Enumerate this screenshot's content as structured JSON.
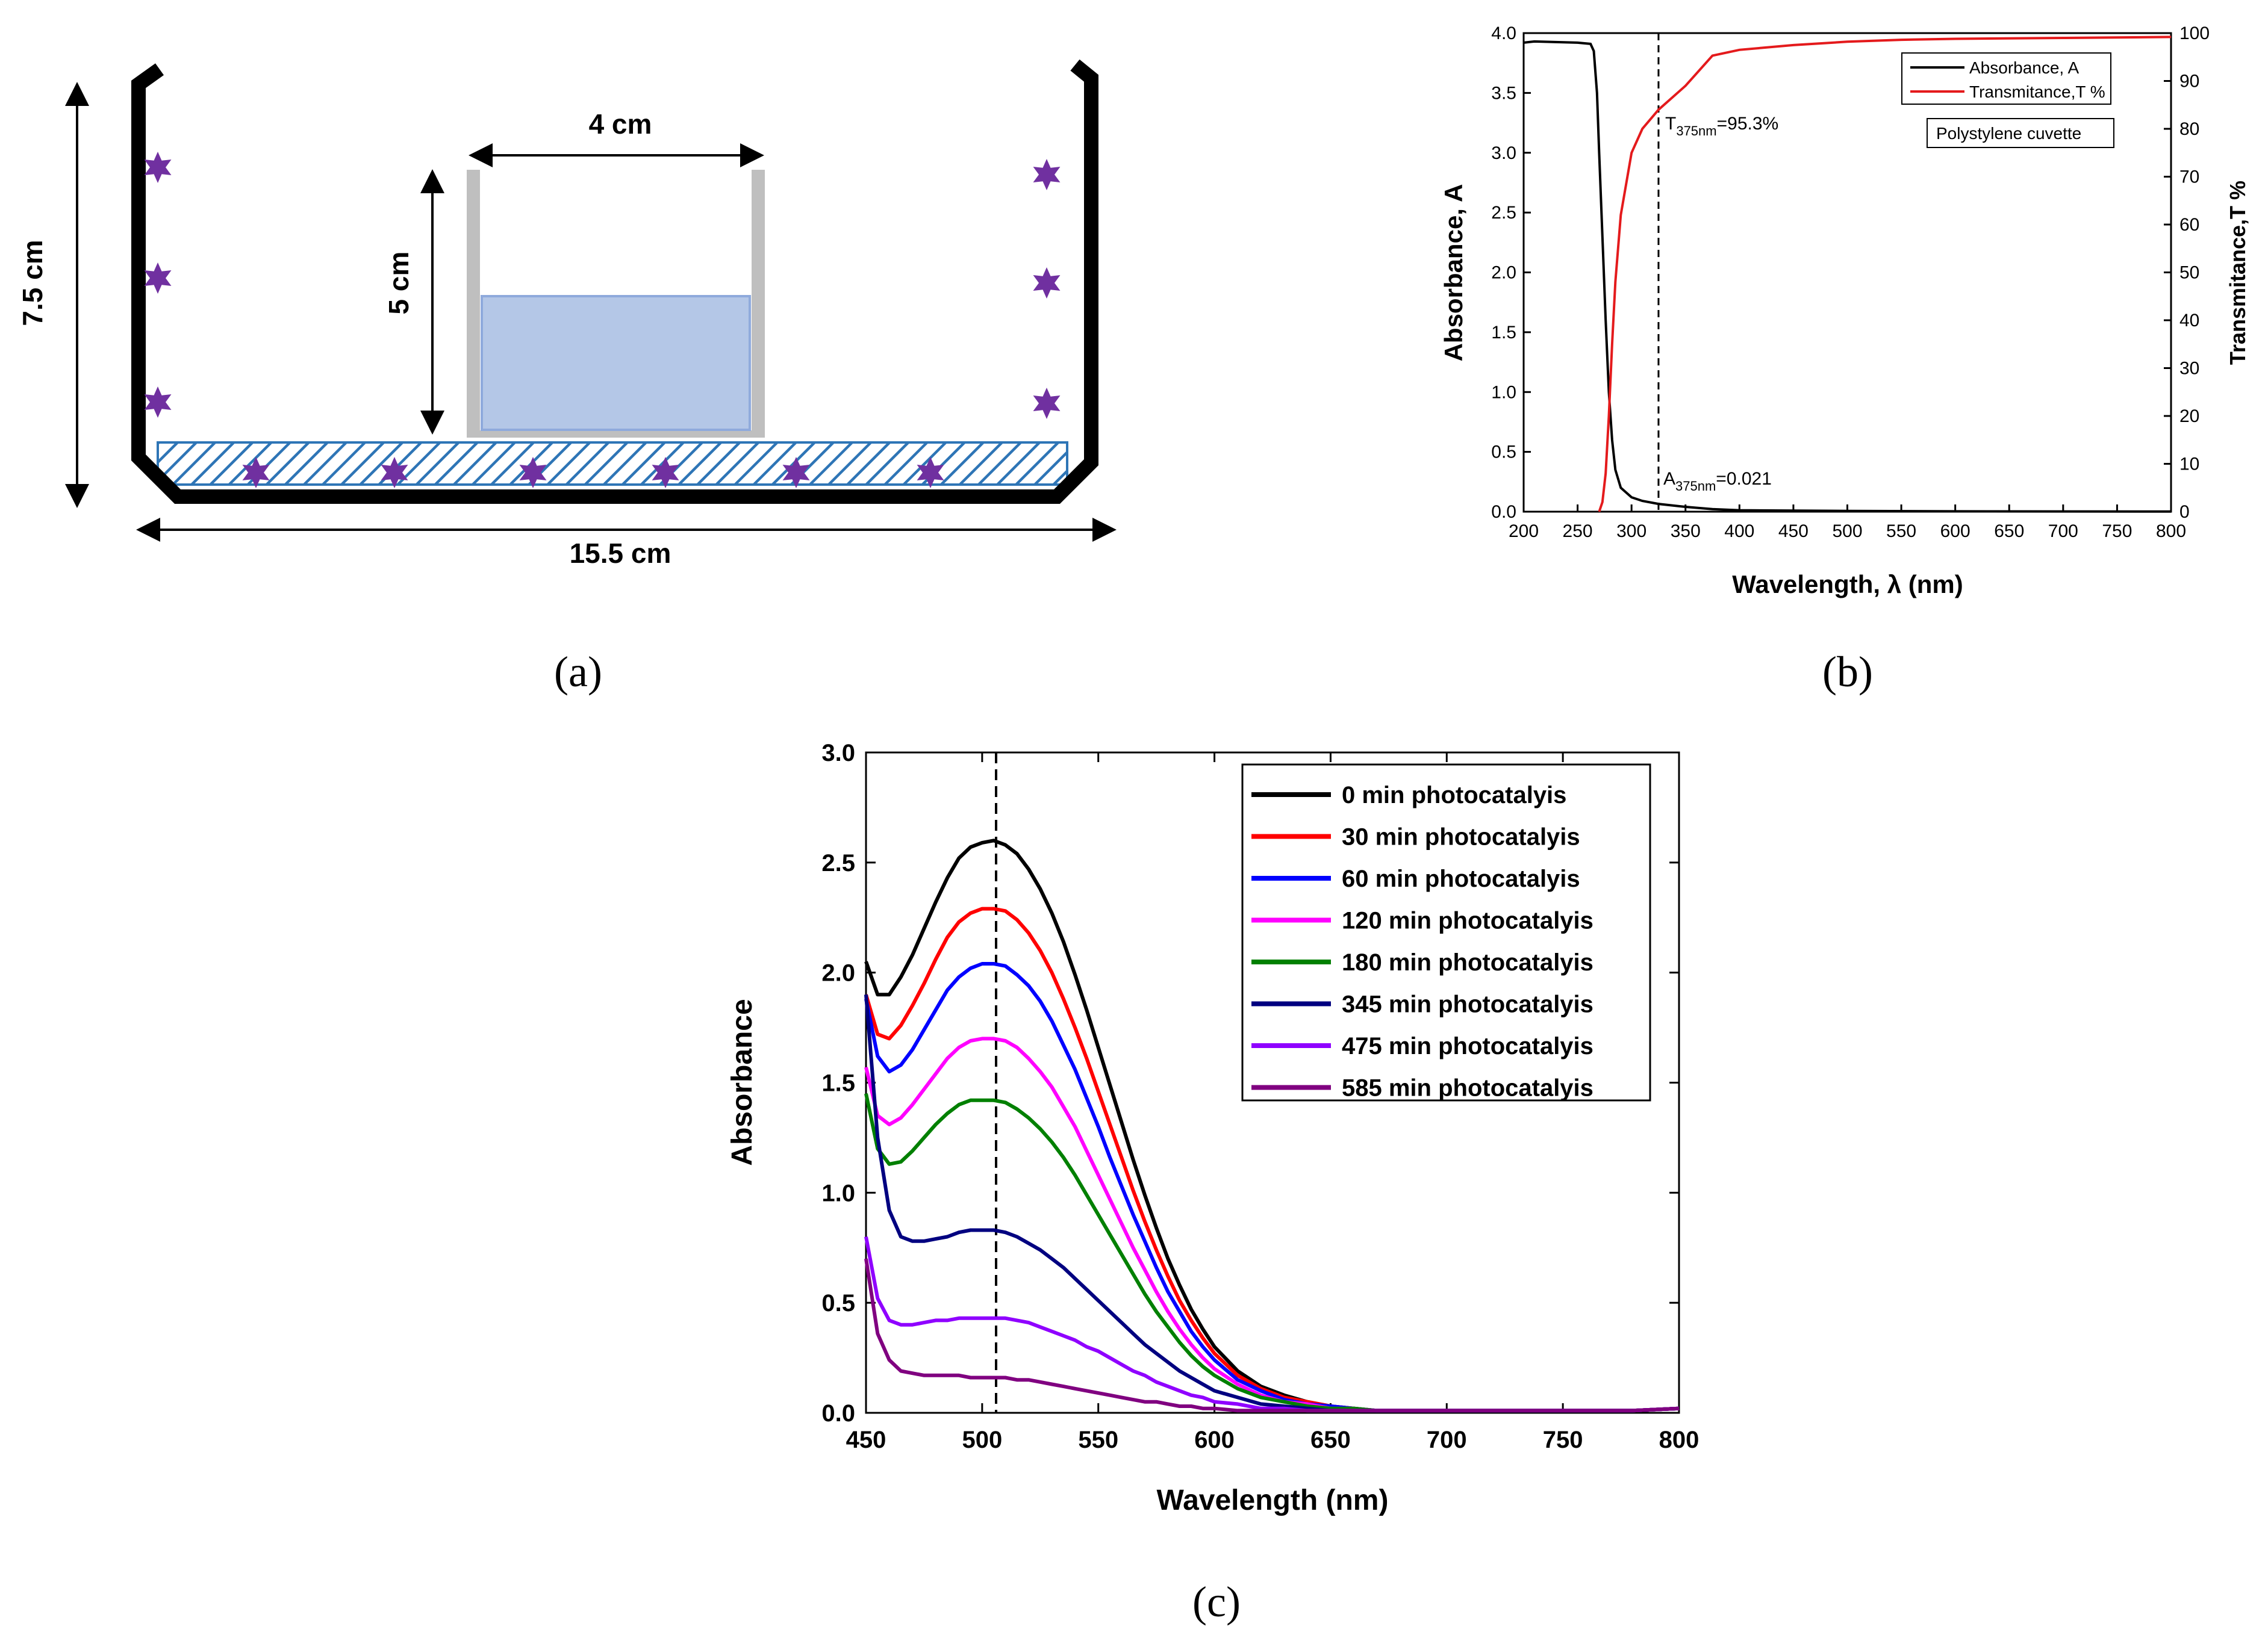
{
  "panel_a": {
    "caption": "(a)",
    "height_label": "7.5 cm",
    "width_label": "15.5 cm",
    "beaker_width_label": "4 cm",
    "beaker_height_label": "5 cm",
    "colors": {
      "wall": "#000000",
      "star": "#7030a0",
      "hatch": "#2e75b6",
      "water": "#b4c7e7",
      "beaker": "#bfbfbf"
    }
  },
  "chart_data": [
    {
      "type": "line",
      "panel_label": "(b)",
      "title": "",
      "xlabel": "Wavelength, λ (nm)",
      "ylabel": "Absorbance, A",
      "y2label": "Transmitance,T %",
      "xlim": [
        200,
        800
      ],
      "ylim": [
        0,
        4.0
      ],
      "y2lim": [
        0,
        100
      ],
      "x_ticks": [
        200,
        250,
        300,
        350,
        400,
        450,
        500,
        550,
        600,
        650,
        700,
        750,
        800
      ],
      "y_ticks": [
        "0.0",
        "0.5",
        "1.0",
        "1.5",
        "2.0",
        "2.5",
        "3.0",
        "3.5",
        "4.0"
      ],
      "y2_ticks": [
        0,
        10,
        20,
        30,
        40,
        50,
        60,
        70,
        80,
        90,
        100
      ],
      "grid": false,
      "legend_position": "top-right",
      "series": [
        {
          "name": "Absorbance, A",
          "axis": "left",
          "color": "#000000",
          "x": [
            200,
            210,
            250,
            262,
            265,
            268,
            270,
            273,
            276,
            279,
            282,
            285,
            290,
            300,
            310,
            325,
            350,
            375,
            400,
            500,
            600,
            700,
            800
          ],
          "y": [
            3.92,
            3.93,
            3.92,
            3.91,
            3.85,
            3.5,
            3.0,
            2.3,
            1.6,
            1.0,
            0.6,
            0.35,
            0.2,
            0.12,
            0.09,
            0.065,
            0.04,
            0.021,
            0.012,
            0.006,
            0.003,
            0.002,
            0.001
          ]
        },
        {
          "name": "Transmitance,T %",
          "axis": "right",
          "color": "#e41a1c",
          "x": [
            270,
            273,
            276,
            279,
            282,
            285,
            290,
            300,
            310,
            325,
            350,
            375,
            400,
            450,
            500,
            550,
            600,
            700,
            800
          ],
          "y": [
            0,
            2,
            8,
            20,
            35,
            48,
            62,
            75,
            80,
            84,
            89,
            95.3,
            96.5,
            97.5,
            98.2,
            98.6,
            98.8,
            99.0,
            99.2
          ]
        }
      ],
      "annotations": {
        "vline_x": 325,
        "t_prefix": "T",
        "t_sub": "375nm",
        "t_value": "=95.3%",
        "a_prefix": "A",
        "a_sub": "375nm",
        "a_value": "=0.021",
        "box_label": "Polystylene cuvette"
      }
    },
    {
      "type": "line",
      "panel_label": "(c)",
      "title": "",
      "xlabel": "Wavelength (nm)",
      "ylabel": "Absorbance",
      "xlim": [
        450,
        800
      ],
      "ylim": [
        0,
        3.0
      ],
      "x_ticks": [
        450,
        500,
        550,
        600,
        650,
        700,
        750,
        800
      ],
      "y_ticks": [
        "0.0",
        "0.5",
        "1.0",
        "1.5",
        "2.0",
        "2.5",
        "3.0"
      ],
      "grid": false,
      "legend_position": "top-right",
      "vline_x": 506,
      "x": [
        450,
        455,
        460,
        465,
        470,
        475,
        480,
        485,
        490,
        495,
        500,
        505,
        510,
        515,
        520,
        525,
        530,
        535,
        540,
        545,
        550,
        555,
        560,
        565,
        570,
        575,
        580,
        585,
        590,
        595,
        600,
        610,
        620,
        630,
        640,
        650,
        660,
        670,
        680,
        690,
        700,
        720,
        740,
        760,
        780,
        800
      ],
      "series": [
        {
          "name": "0 min photocatalyis",
          "color": "#000000",
          "y": [
            2.05,
            1.9,
            1.9,
            1.98,
            2.08,
            2.2,
            2.32,
            2.43,
            2.52,
            2.57,
            2.59,
            2.6,
            2.58,
            2.54,
            2.47,
            2.38,
            2.27,
            2.14,
            1.99,
            1.83,
            1.66,
            1.49,
            1.32,
            1.15,
            0.99,
            0.84,
            0.7,
            0.58,
            0.47,
            0.38,
            0.3,
            0.19,
            0.12,
            0.08,
            0.05,
            0.03,
            0.02,
            0.01,
            0.01,
            0.01,
            0.01,
            0.01,
            0.01,
            0.01,
            0.01,
            0.02
          ]
        },
        {
          "name": "30 min photocatalyis",
          "color": "#ff0000",
          "y": [
            1.9,
            1.72,
            1.7,
            1.76,
            1.85,
            1.95,
            2.06,
            2.16,
            2.23,
            2.27,
            2.29,
            2.29,
            2.28,
            2.24,
            2.18,
            2.1,
            2.0,
            1.88,
            1.75,
            1.61,
            1.46,
            1.31,
            1.16,
            1.01,
            0.87,
            0.74,
            0.62,
            0.51,
            0.42,
            0.34,
            0.27,
            0.17,
            0.11,
            0.07,
            0.05,
            0.03,
            0.02,
            0.01,
            0.01,
            0.01,
            0.01,
            0.01,
            0.01,
            0.01,
            0.01,
            0.02
          ]
        },
        {
          "name": "60 min photocatalyis",
          "color": "#0000ff",
          "y": [
            1.88,
            1.62,
            1.55,
            1.58,
            1.65,
            1.74,
            1.83,
            1.92,
            1.98,
            2.02,
            2.04,
            2.04,
            2.03,
            1.99,
            1.94,
            1.87,
            1.78,
            1.67,
            1.56,
            1.43,
            1.3,
            1.16,
            1.03,
            0.9,
            0.78,
            0.66,
            0.55,
            0.46,
            0.37,
            0.3,
            0.24,
            0.15,
            0.1,
            0.06,
            0.04,
            0.03,
            0.02,
            0.01,
            0.01,
            0.01,
            0.01,
            0.01,
            0.01,
            0.01,
            0.01,
            0.02
          ]
        },
        {
          "name": "120 min  photocatalyis",
          "color": "#ff00ff",
          "y": [
            1.57,
            1.35,
            1.31,
            1.34,
            1.4,
            1.47,
            1.54,
            1.61,
            1.66,
            1.69,
            1.7,
            1.7,
            1.69,
            1.66,
            1.61,
            1.55,
            1.48,
            1.39,
            1.3,
            1.19,
            1.08,
            0.97,
            0.86,
            0.75,
            0.65,
            0.55,
            0.46,
            0.38,
            0.31,
            0.25,
            0.2,
            0.13,
            0.08,
            0.05,
            0.04,
            0.02,
            0.02,
            0.01,
            0.01,
            0.01,
            0.01,
            0.01,
            0.01,
            0.01,
            0.01,
            0.02
          ]
        },
        {
          "name": "180 min  photocatalyis",
          "color": "#008000",
          "y": [
            1.45,
            1.2,
            1.13,
            1.14,
            1.19,
            1.25,
            1.31,
            1.36,
            1.4,
            1.42,
            1.42,
            1.42,
            1.41,
            1.38,
            1.34,
            1.29,
            1.23,
            1.16,
            1.08,
            0.99,
            0.9,
            0.81,
            0.72,
            0.63,
            0.54,
            0.46,
            0.39,
            0.32,
            0.26,
            0.21,
            0.17,
            0.11,
            0.07,
            0.05,
            0.03,
            0.02,
            0.02,
            0.01,
            0.01,
            0.01,
            0.01,
            0.01,
            0.01,
            0.01,
            0.01,
            0.02
          ]
        },
        {
          "name": "345 min  photocatalyis",
          "color": "#000080",
          "y": [
            1.9,
            1.25,
            0.92,
            0.8,
            0.78,
            0.78,
            0.79,
            0.8,
            0.82,
            0.83,
            0.83,
            0.83,
            0.82,
            0.8,
            0.77,
            0.74,
            0.7,
            0.66,
            0.61,
            0.56,
            0.51,
            0.46,
            0.41,
            0.36,
            0.31,
            0.27,
            0.23,
            0.19,
            0.16,
            0.13,
            0.1,
            0.07,
            0.04,
            0.03,
            0.02,
            0.01,
            0.01,
            0.01,
            0.01,
            0.01,
            0.01,
            0.01,
            0.01,
            0.01,
            0.01,
            0.02
          ]
        },
        {
          "name": "475 min  photocatalyis",
          "color": "#8f00ff",
          "y": [
            0.8,
            0.52,
            0.42,
            0.4,
            0.4,
            0.41,
            0.42,
            0.42,
            0.43,
            0.43,
            0.43,
            0.43,
            0.43,
            0.42,
            0.41,
            0.39,
            0.37,
            0.35,
            0.33,
            0.3,
            0.28,
            0.25,
            0.22,
            0.19,
            0.17,
            0.14,
            0.12,
            0.1,
            0.08,
            0.07,
            0.05,
            0.04,
            0.02,
            0.02,
            0.01,
            0.01,
            0.01,
            0.01,
            0.01,
            0.01,
            0.01,
            0.01,
            0.01,
            0.01,
            0.01,
            0.02
          ]
        },
        {
          "name": "585 min  photocatalyis",
          "color": "#800080",
          "y": [
            0.7,
            0.36,
            0.24,
            0.19,
            0.18,
            0.17,
            0.17,
            0.17,
            0.17,
            0.16,
            0.16,
            0.16,
            0.16,
            0.15,
            0.15,
            0.14,
            0.13,
            0.12,
            0.11,
            0.1,
            0.09,
            0.08,
            0.07,
            0.06,
            0.05,
            0.05,
            0.04,
            0.03,
            0.03,
            0.02,
            0.02,
            0.01,
            0.01,
            0.01,
            0.01,
            0.01,
            0.01,
            0.01,
            0.01,
            0.01,
            0.01,
            0.01,
            0.01,
            0.01,
            0.01,
            0.02
          ]
        }
      ]
    }
  ]
}
